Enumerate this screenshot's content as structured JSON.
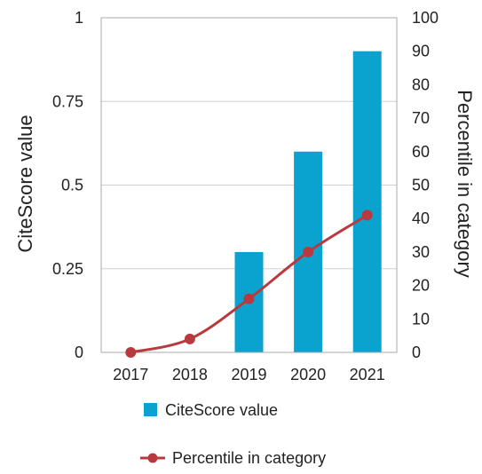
{
  "chart_data": {
    "type": "bar",
    "categories": [
      "2017",
      "2018",
      "2019",
      "2020",
      "2021"
    ],
    "series": [
      {
        "name": "CiteScore value",
        "type": "bar",
        "axis": "left",
        "values": [
          0,
          0,
          0.3,
          0.6,
          0.9
        ],
        "color": "#0aa3cf"
      },
      {
        "name": "Percentile in category",
        "type": "line",
        "axis": "right",
        "values": [
          0,
          4,
          16,
          30,
          41
        ],
        "color": "#b83a3f"
      }
    ],
    "ylabel": "CiteScore value",
    "y2label": "Percentile in category",
    "ylim": [
      0,
      1
    ],
    "y2lim": [
      0,
      100
    ],
    "yticks": [
      "0",
      "0.25",
      "0.5",
      "0.75",
      "1"
    ],
    "y2ticks": [
      "0",
      "10",
      "20",
      "30",
      "40",
      "50",
      "60",
      "70",
      "80",
      "90",
      "100"
    ],
    "grid": "horizontal",
    "legend_position": "bottom"
  }
}
